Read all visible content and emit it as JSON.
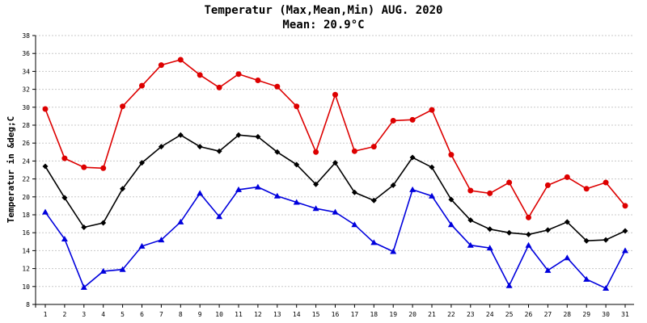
{
  "chart_data": {
    "type": "line",
    "title": "Temperatur (Max,Mean,Min) AUG. 2020",
    "subtitle": "Mean: 20.9°C",
    "xlabel": "",
    "ylabel": "Temperatur in &deg;C",
    "ylim": [
      8,
      38
    ],
    "yticks": [
      8,
      10,
      12,
      14,
      16,
      18,
      20,
      22,
      24,
      26,
      28,
      30,
      32,
      34,
      36,
      38
    ],
    "grid": true,
    "categories": [
      "1",
      "2",
      "3",
      "4",
      "5",
      "6",
      "7",
      "8",
      "9",
      "10",
      "11",
      "12",
      "13",
      "14",
      "15",
      "16",
      "17",
      "18",
      "19",
      "20",
      "21",
      "22",
      "23",
      "24",
      "25",
      "26",
      "27",
      "28",
      "29",
      "30",
      "31"
    ],
    "series": [
      {
        "color": "#dd0000",
        "marker": "circle",
        "values": [
          29.8,
          24.3,
          23.3,
          23.2,
          30.1,
          32.4,
          34.7,
          35.3,
          33.6,
          32.2,
          33.7,
          33.0,
          32.3,
          30.1,
          25.0,
          31.4,
          25.1,
          25.6,
          28.5,
          28.6,
          29.7,
          24.7,
          20.7,
          20.4,
          21.6,
          17.7,
          21.3,
          22.2,
          20.9,
          21.6,
          19.0
        ]
      },
      {
        "color": "#000000",
        "marker": "diamond",
        "values": [
          23.4,
          19.9,
          16.6,
          17.1,
          20.9,
          23.8,
          25.6,
          26.9,
          25.6,
          25.1,
          26.9,
          26.7,
          25.0,
          23.6,
          21.4,
          23.8,
          20.5,
          19.6,
          21.3,
          24.4,
          23.3,
          19.7,
          17.4,
          16.4,
          16.0,
          15.8,
          16.3,
          17.2,
          15.1,
          15.2,
          16.2
        ]
      },
      {
        "color": "#0000dd",
        "marker": "triangle",
        "values": [
          18.3,
          15.3,
          9.9,
          11.7,
          11.9,
          14.5,
          15.2,
          17.2,
          20.4,
          17.8,
          20.8,
          21.1,
          20.1,
          19.4,
          18.7,
          18.3,
          16.9,
          14.9,
          13.9,
          20.8,
          20.1,
          16.9,
          14.6,
          14.3,
          10.1,
          14.6,
          11.8,
          13.2,
          10.8,
          9.8,
          14.0
        ]
      }
    ]
  }
}
